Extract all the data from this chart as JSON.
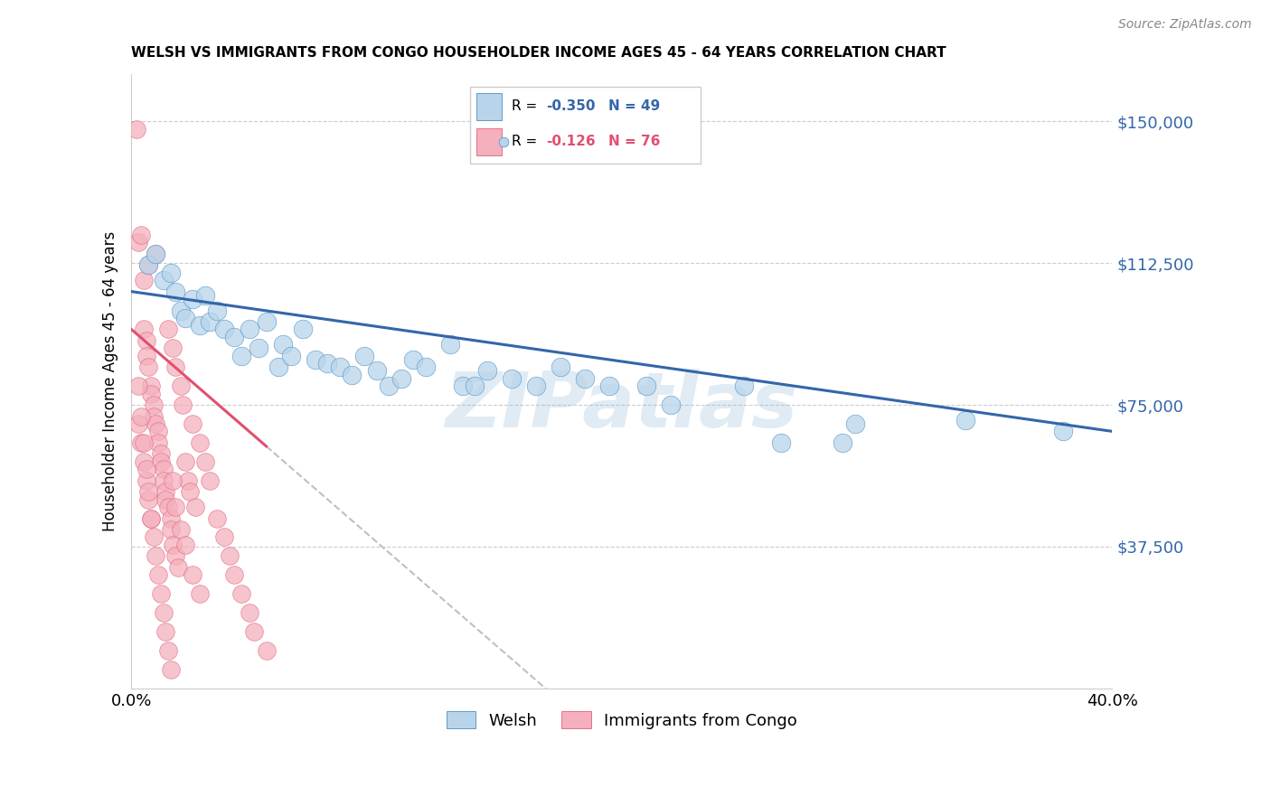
{
  "title": "WELSH VS IMMIGRANTS FROM CONGO HOUSEHOLDER INCOME AGES 45 - 64 YEARS CORRELATION CHART",
  "source": "Source: ZipAtlas.com",
  "ylabel": "Householder Income Ages 45 - 64 years",
  "xlim": [
    0.0,
    0.4
  ],
  "ylim": [
    0,
    162500
  ],
  "ytick_vals": [
    37500,
    75000,
    112500,
    150000
  ],
  "ytick_labels": [
    "$37,500",
    "$75,000",
    "$112,500",
    "$150,000"
  ],
  "xtick_vals": [
    0.0,
    0.4
  ],
  "xtick_labels": [
    "0.0%",
    "40.0%"
  ],
  "legend_r_welsh": "-0.350",
  "legend_n_welsh": "49",
  "legend_r_congo": "-0.126",
  "legend_n_congo": "76",
  "blue_fill": "#b8d4ea",
  "blue_edge": "#4a90c4",
  "blue_line": "#3366aa",
  "pink_fill": "#f4b0bc",
  "pink_edge": "#e06080",
  "pink_line": "#e05070",
  "watermark": "ZIPatlas",
  "welsh_x": [
    0.007,
    0.01,
    0.013,
    0.016,
    0.018,
    0.02,
    0.022,
    0.025,
    0.028,
    0.03,
    0.032,
    0.035,
    0.038,
    0.042,
    0.045,
    0.048,
    0.052,
    0.055,
    0.06,
    0.062,
    0.065,
    0.07,
    0.075,
    0.08,
    0.085,
    0.09,
    0.095,
    0.1,
    0.105,
    0.11,
    0.115,
    0.12,
    0.13,
    0.135,
    0.14,
    0.145,
    0.155,
    0.165,
    0.175,
    0.185,
    0.195,
    0.21,
    0.22,
    0.25,
    0.265,
    0.29,
    0.295,
    0.34,
    0.38
  ],
  "welsh_y": [
    112000,
    115000,
    108000,
    110000,
    105000,
    100000,
    98000,
    103000,
    96000,
    104000,
    97000,
    100000,
    95000,
    93000,
    88000,
    95000,
    90000,
    97000,
    85000,
    91000,
    88000,
    95000,
    87000,
    86000,
    85000,
    83000,
    88000,
    84000,
    80000,
    82000,
    87000,
    85000,
    91000,
    80000,
    80000,
    84000,
    82000,
    80000,
    85000,
    82000,
    80000,
    80000,
    75000,
    80000,
    65000,
    65000,
    70000,
    71000,
    68000
  ],
  "congo_x": [
    0.002,
    0.003,
    0.004,
    0.005,
    0.005,
    0.006,
    0.006,
    0.007,
    0.007,
    0.008,
    0.008,
    0.009,
    0.009,
    0.01,
    0.01,
    0.011,
    0.011,
    0.012,
    0.012,
    0.013,
    0.013,
    0.014,
    0.014,
    0.015,
    0.015,
    0.016,
    0.016,
    0.017,
    0.017,
    0.018,
    0.018,
    0.019,
    0.02,
    0.021,
    0.022,
    0.023,
    0.024,
    0.025,
    0.026,
    0.028,
    0.03,
    0.032,
    0.035,
    0.038,
    0.04,
    0.042,
    0.045,
    0.048,
    0.05,
    0.055,
    0.003,
    0.004,
    0.005,
    0.006,
    0.007,
    0.008,
    0.009,
    0.01,
    0.011,
    0.012,
    0.013,
    0.014,
    0.015,
    0.016,
    0.017,
    0.018,
    0.02,
    0.022,
    0.025,
    0.028,
    0.003,
    0.004,
    0.005,
    0.006,
    0.007,
    0.008
  ],
  "congo_y": [
    148000,
    118000,
    120000,
    108000,
    95000,
    92000,
    88000,
    85000,
    112000,
    80000,
    78000,
    75000,
    72000,
    70000,
    115000,
    68000,
    65000,
    62000,
    60000,
    58000,
    55000,
    52000,
    50000,
    95000,
    48000,
    45000,
    42000,
    90000,
    38000,
    85000,
    35000,
    32000,
    80000,
    75000,
    60000,
    55000,
    52000,
    70000,
    48000,
    65000,
    60000,
    55000,
    45000,
    40000,
    35000,
    30000,
    25000,
    20000,
    15000,
    10000,
    70000,
    65000,
    60000,
    55000,
    50000,
    45000,
    40000,
    35000,
    30000,
    25000,
    20000,
    15000,
    10000,
    5000,
    55000,
    48000,
    42000,
    38000,
    30000,
    25000,
    80000,
    72000,
    65000,
    58000,
    52000,
    45000
  ]
}
